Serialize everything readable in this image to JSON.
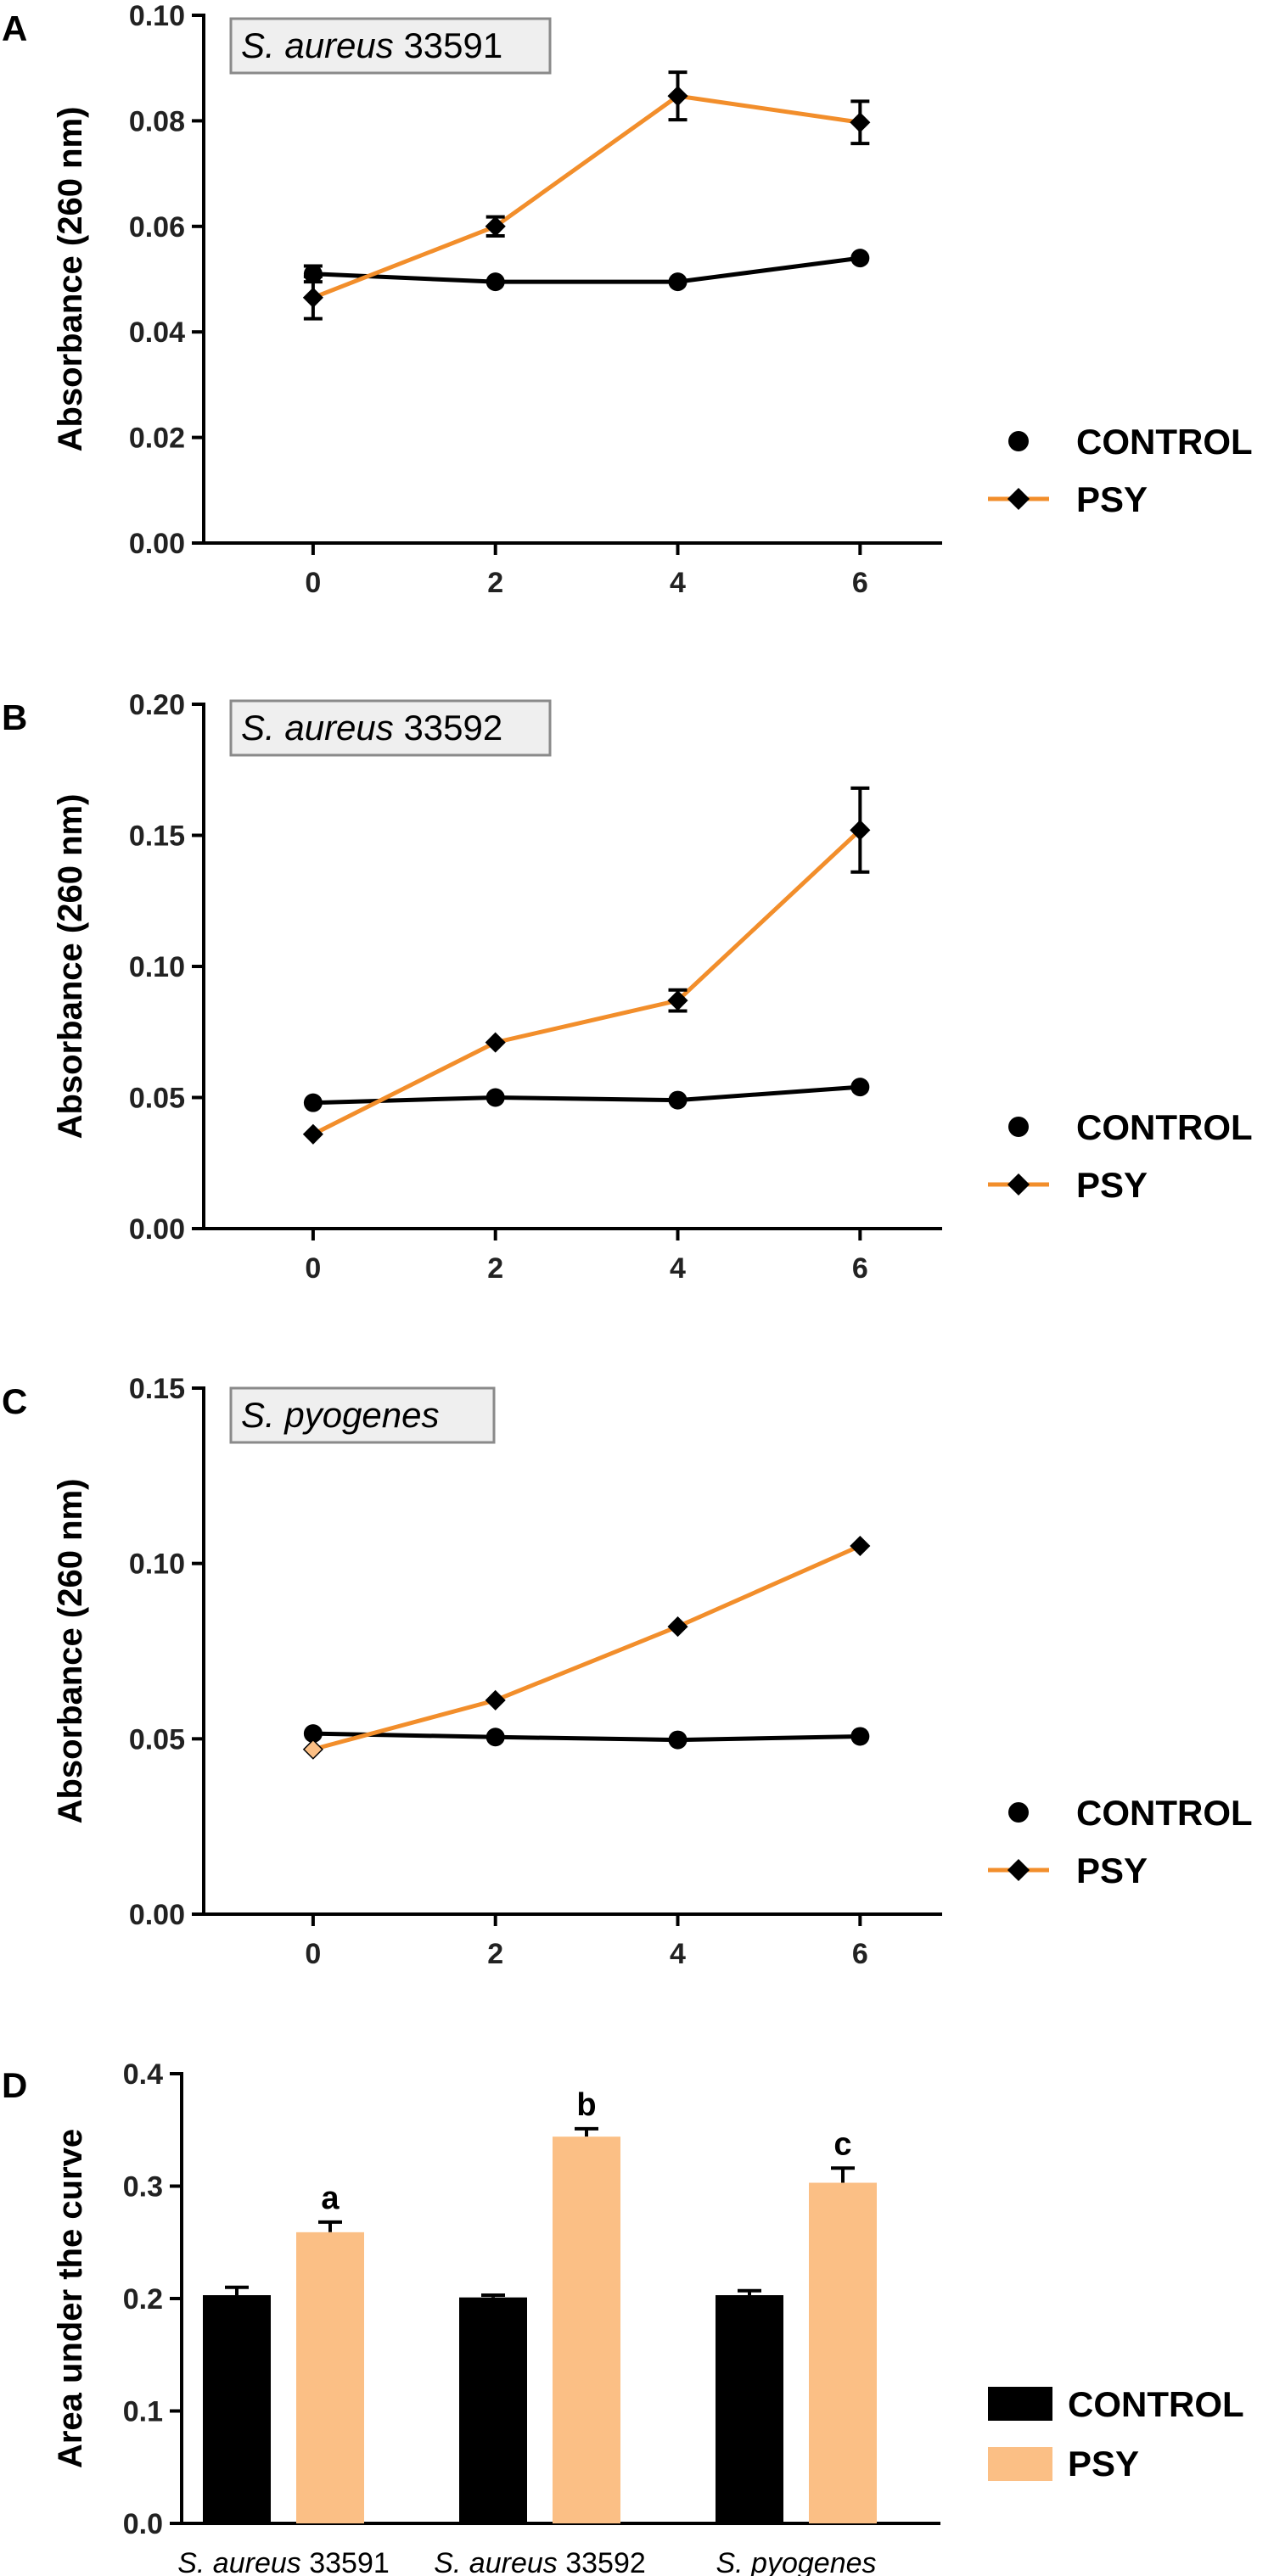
{
  "figure": {
    "colors": {
      "control": "#000000",
      "psy_line": "#f28e2b",
      "psy_bar": "#fbbf85",
      "axis": "#000000"
    }
  },
  "chart_data": [
    {
      "panel": "A",
      "type": "line",
      "title_italic": "S. aureus",
      "title_rest": " 33591",
      "ylabel": "Absorbance (260 nm)",
      "xlabel": "",
      "x": [
        0,
        2,
        4,
        6
      ],
      "xticks": [
        "0",
        "2",
        "4",
        "6"
      ],
      "xlim": [
        -1.2,
        6.9
      ],
      "ylim": [
        0,
        0.1
      ],
      "yticks": [
        "0.00",
        "0.02",
        "0.04",
        "0.06",
        "0.08",
        "0.10"
      ],
      "ytick_values": [
        0,
        0.02,
        0.04,
        0.06,
        0.08,
        0.1
      ],
      "series": [
        {
          "name": "CONTROL",
          "values": [
            0.051,
            0.0495,
            0.0495,
            0.054
          ],
          "errors": [
            0.0015,
            0,
            0,
            0
          ]
        },
        {
          "name": "PSY",
          "values": [
            0.0465,
            0.06,
            0.0847,
            0.0797
          ],
          "errors": [
            0.004,
            0.0018,
            0.0045,
            0.004
          ]
        }
      ],
      "legend": [
        "CONTROL",
        "PSY"
      ]
    },
    {
      "panel": "B",
      "type": "line",
      "title_italic": "S. aureus",
      "title_rest": " 33592",
      "ylabel": "Absorbance (260 nm)",
      "xlabel": "",
      "x": [
        0,
        2,
        4,
        6
      ],
      "xticks": [
        "0",
        "2",
        "4",
        "6"
      ],
      "xlim": [
        -1.2,
        6.9
      ],
      "ylim": [
        0,
        0.2
      ],
      "yticks": [
        "0.00",
        "0.05",
        "0.10",
        "0.15",
        "0.20"
      ],
      "ytick_values": [
        0,
        0.05,
        0.1,
        0.15,
        0.2
      ],
      "series": [
        {
          "name": "CONTROL",
          "values": [
            0.048,
            0.05,
            0.049,
            0.054
          ],
          "errors": [
            0,
            0,
            0,
            0
          ]
        },
        {
          "name": "PSY",
          "values": [
            0.036,
            0.071,
            0.087,
            0.152
          ],
          "errors": [
            0,
            0,
            0.004,
            0.016
          ]
        }
      ],
      "legend": [
        "CONTROL",
        "PSY"
      ]
    },
    {
      "panel": "C",
      "type": "line",
      "title_italic": "S. pyogenes",
      "title_rest": "",
      "ylabel": "Absorbance (260 nm)",
      "xlabel": "",
      "x": [
        0,
        2,
        4,
        6
      ],
      "xticks": [
        "0",
        "2",
        "4",
        "6"
      ],
      "xlim": [
        -1.2,
        6.9
      ],
      "ylim": [
        0,
        0.15
      ],
      "yticks": [
        "0.00",
        "0.05",
        "0.10",
        "0.15"
      ],
      "ytick_values": [
        0,
        0.05,
        0.1,
        0.15
      ],
      "series": [
        {
          "name": "CONTROL",
          "values": [
            0.0515,
            0.0505,
            0.0497,
            0.0507
          ],
          "errors": [
            0,
            0,
            0,
            0
          ]
        },
        {
          "name": "PSY",
          "values": [
            0.047,
            0.061,
            0.082,
            0.105
          ],
          "errors": [
            0,
            0,
            0,
            0
          ]
        }
      ],
      "legend": [
        "CONTROL",
        "PSY"
      ]
    },
    {
      "panel": "D",
      "type": "bar",
      "ylabel": "Area under the curve",
      "xlabel": "",
      "categories": [
        {
          "italic": "S. aureus",
          "rest": " 33591"
        },
        {
          "italic": "S. aureus",
          "rest": " 33592"
        },
        {
          "italic": "S. pyogenes",
          "rest": ""
        }
      ],
      "ylim": [
        0,
        0.4
      ],
      "yticks": [
        "0.0",
        "0.1",
        "0.2",
        "0.3",
        "0.4"
      ],
      "ytick_values": [
        0,
        0.1,
        0.2,
        0.3,
        0.4
      ],
      "series": [
        {
          "name": "CONTROL",
          "values": [
            0.203,
            0.201,
            0.203
          ],
          "errors": [
            0.007,
            0.002,
            0.004
          ]
        },
        {
          "name": "PSY",
          "values": [
            0.259,
            0.344,
            0.303
          ],
          "errors": [
            0.009,
            0.007,
            0.013
          ]
        }
      ],
      "significance": [
        "a",
        "b",
        "c"
      ],
      "legend": [
        "CONTROL",
        "PSY"
      ]
    }
  ]
}
